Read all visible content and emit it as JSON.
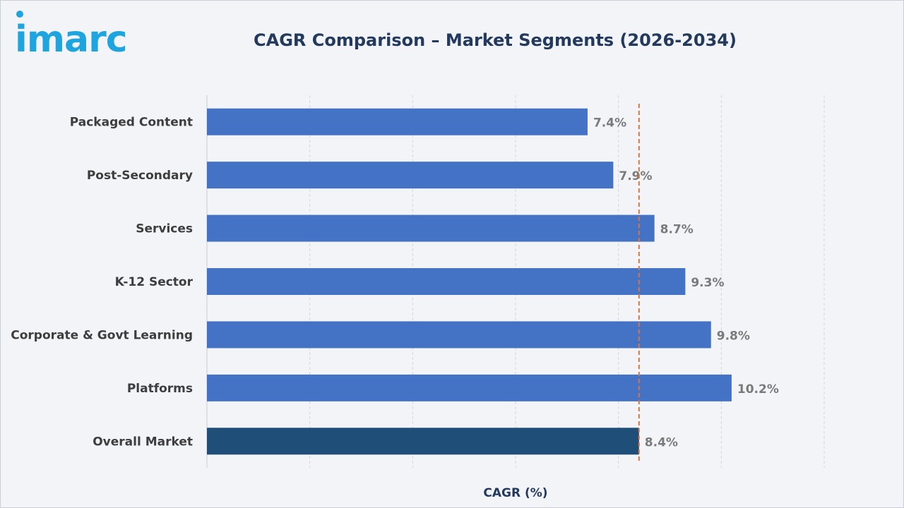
{
  "header": {
    "logo_text": "imarc",
    "title": "CAGR Comparison – Market Segments (2026-2034)"
  },
  "colors": {
    "segment_bar": "#4472c4",
    "overall_bar": "#1f4e79",
    "reference_line": "#e0733a",
    "logo": "#1ea5e0"
  },
  "chart_data": {
    "type": "bar",
    "orientation": "horizontal",
    "categories": [
      "Packaged Content",
      "Post-Secondary",
      "Services",
      "K-12 Sector",
      "Corporate & Govt Learning",
      "Platforms",
      "Overall Market"
    ],
    "values": [
      7.4,
      7.9,
      8.7,
      9.3,
      9.8,
      10.2,
      8.4
    ],
    "value_labels": [
      "7.4%",
      "7.9%",
      "8.7%",
      "9.3%",
      "9.8%",
      "10.2%",
      "8.4%"
    ],
    "highlight_category": "Overall Market",
    "reference_line": 8.4,
    "xlabel": "CAGR (%)",
    "xlim": [
      0,
      12
    ],
    "grid": true,
    "legend": "none"
  }
}
